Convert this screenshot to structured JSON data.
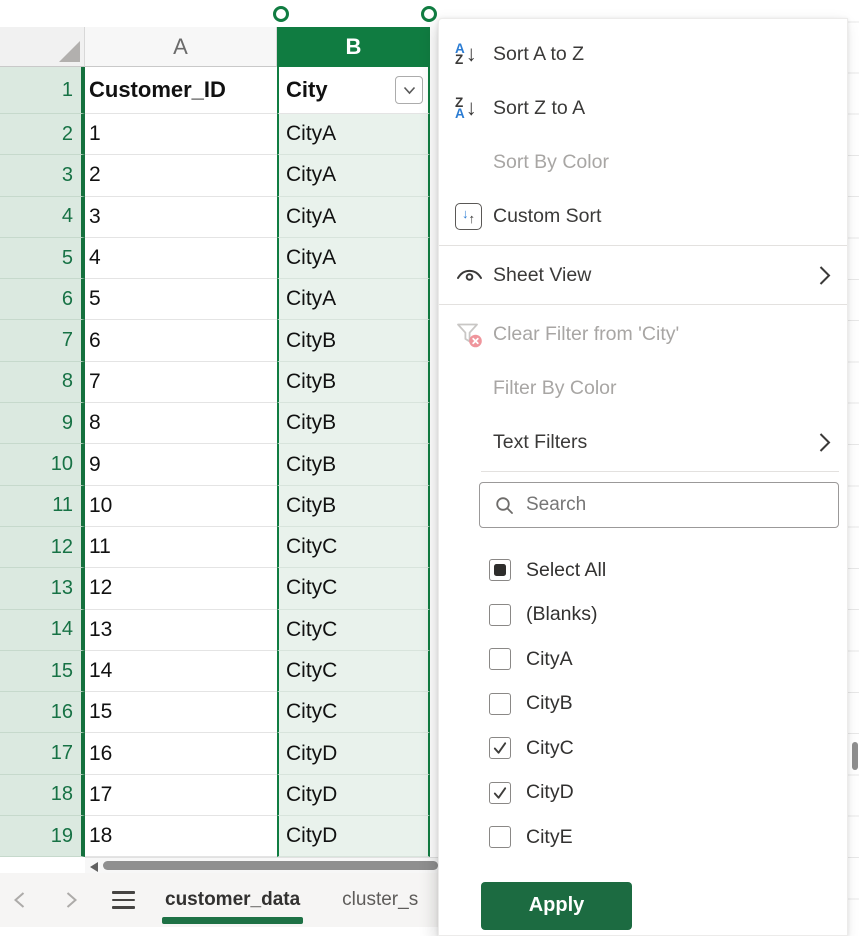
{
  "sheet": {
    "column_headers": [
      "A",
      "B"
    ],
    "header_row": {
      "num": "1",
      "customer_id": "Customer_ID",
      "city": "City"
    },
    "rows": [
      {
        "num": "2",
        "id": "1",
        "city": "CityA"
      },
      {
        "num": "3",
        "id": "2",
        "city": "CityA"
      },
      {
        "num": "4",
        "id": "3",
        "city": "CityA"
      },
      {
        "num": "5",
        "id": "4",
        "city": "CityA"
      },
      {
        "num": "6",
        "id": "5",
        "city": "CityA"
      },
      {
        "num": "7",
        "id": "6",
        "city": "CityB"
      },
      {
        "num": "8",
        "id": "7",
        "city": "CityB"
      },
      {
        "num": "9",
        "id": "8",
        "city": "CityB"
      },
      {
        "num": "10",
        "id": "9",
        "city": "CityB"
      },
      {
        "num": "11",
        "id": "10",
        "city": "CityB"
      },
      {
        "num": "12",
        "id": "11",
        "city": "CityC"
      },
      {
        "num": "13",
        "id": "12",
        "city": "CityC"
      },
      {
        "num": "14",
        "id": "13",
        "city": "CityC"
      },
      {
        "num": "15",
        "id": "14",
        "city": "CityC"
      },
      {
        "num": "16",
        "id": "15",
        "city": "CityC"
      },
      {
        "num": "17",
        "id": "16",
        "city": "CityD"
      },
      {
        "num": "18",
        "id": "17",
        "city": "CityD"
      },
      {
        "num": "19",
        "id": "18",
        "city": "CityD"
      }
    ]
  },
  "filter_menu": {
    "items": {
      "sort_az": "Sort A to Z",
      "sort_za": "Sort Z to A",
      "sort_by_color": "Sort By Color",
      "custom_sort": "Custom Sort",
      "sheet_view": "Sheet View",
      "clear_filter": "Clear Filter from 'City'",
      "filter_by_color": "Filter By Color",
      "text_filters": "Text Filters"
    },
    "search_placeholder": "Search",
    "values": [
      {
        "label": "Select All",
        "state": "indeterminate"
      },
      {
        "label": "(Blanks)",
        "state": "unchecked"
      },
      {
        "label": "CityA",
        "state": "unchecked"
      },
      {
        "label": "CityB",
        "state": "unchecked"
      },
      {
        "label": "CityC",
        "state": "checked"
      },
      {
        "label": "CityD",
        "state": "checked"
      },
      {
        "label": "CityE",
        "state": "unchecked"
      }
    ],
    "apply_label": "Apply"
  },
  "tab_bar": {
    "tabs": [
      {
        "label": "customer_data",
        "active": true
      },
      {
        "label": "cluster_s",
        "active": false
      }
    ]
  },
  "colors": {
    "excel_green": "#107C41",
    "selected_fill": "#E9F2EC",
    "row_header_fill": "#DBE9E0",
    "apply_button_green": "#1C6B41",
    "accent_blue": "#2B7CD3",
    "disabled_text": "#A8A6A4",
    "clear_filter_badge_red": "#EF959C"
  }
}
